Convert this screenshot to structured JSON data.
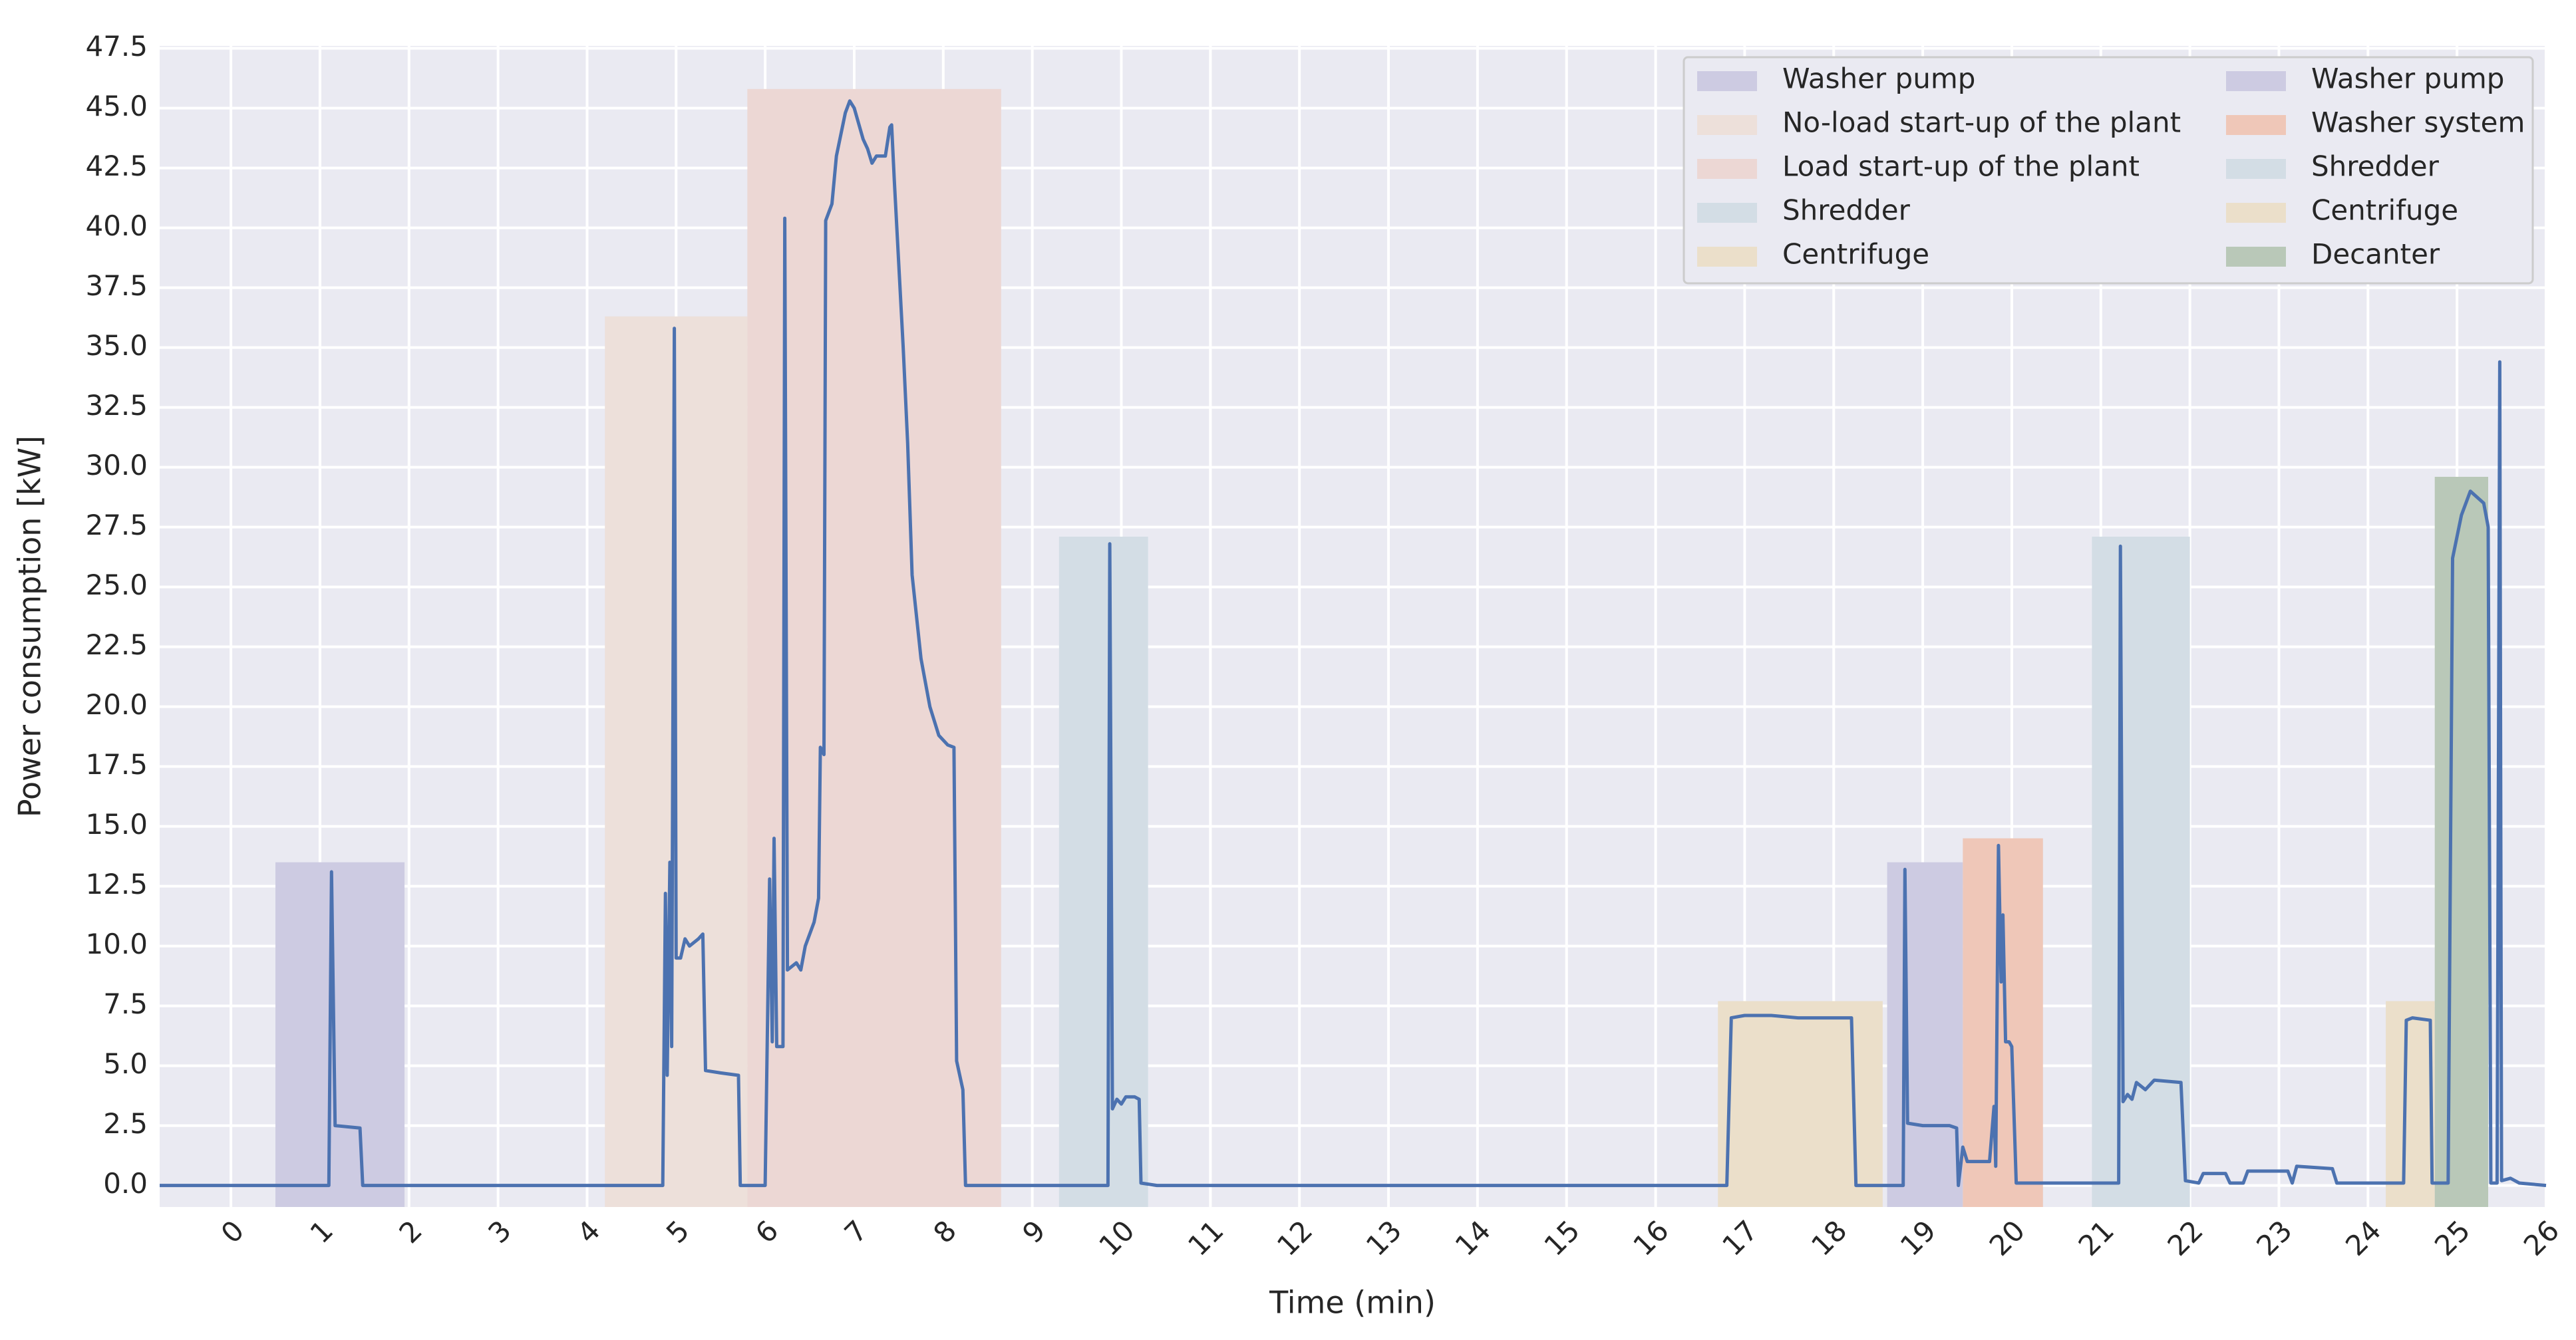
{
  "chart_data": {
    "type": "line",
    "xlabel": "Time (min)",
    "ylabel": "Power consumption [kW]",
    "color": "#4c72b0",
    "x": [
      -0.8,
      1.1,
      1.13,
      1.17,
      1.45,
      1.48,
      4.85,
      4.88,
      4.9,
      4.93,
      4.95,
      4.98,
      5.0,
      5.05,
      5.1,
      5.15,
      5.25,
      5.3,
      5.33,
      5.5,
      5.7,
      5.72,
      6.0,
      6.05,
      6.08,
      6.1,
      6.13,
      6.2,
      6.22,
      6.25,
      6.35,
      6.4,
      6.45,
      6.55,
      6.6,
      6.62,
      6.66,
      6.68,
      6.75,
      6.8,
      6.9,
      6.95,
      7.0,
      7.1,
      7.15,
      7.2,
      7.25,
      7.35,
      7.4,
      7.42,
      7.45,
      7.55,
      7.6,
      7.65,
      7.75,
      7.85,
      7.95,
      8.05,
      8.12,
      8.15,
      8.22,
      8.25,
      9.85,
      9.87,
      9.9,
      9.95,
      10.0,
      10.05,
      10.15,
      10.2,
      10.22,
      10.4,
      16.8,
      16.85,
      17.0,
      17.3,
      17.6,
      18.1,
      18.2,
      18.25,
      18.78,
      18.8,
      18.83,
      19.0,
      19.3,
      19.38,
      19.4,
      19.45,
      19.5,
      19.75,
      19.8,
      19.82,
      19.85,
      19.88,
      19.9,
      19.93,
      19.97,
      20.0,
      20.05,
      21.2,
      21.22,
      21.25,
      21.3,
      21.35,
      21.4,
      21.5,
      21.6,
      21.9,
      21.95,
      22.1,
      22.15,
      22.4,
      22.45,
      22.6,
      22.65,
      23.1,
      23.15,
      23.2,
      23.6,
      23.65,
      24.4,
      24.43,
      24.5,
      24.7,
      24.72,
      24.9,
      24.95,
      25.05,
      25.15,
      25.3,
      25.35,
      25.38,
      25.45,
      25.48,
      25.5,
      25.6,
      25.7,
      26.0
    ],
    "values": [
      0,
      0,
      13.1,
      2.5,
      2.4,
      0,
      0,
      12.2,
      4.6,
      13.5,
      5.8,
      35.8,
      9.5,
      9.5,
      10.3,
      10.0,
      10.3,
      10.5,
      4.8,
      4.7,
      4.6,
      0,
      0,
      12.8,
      6.0,
      14.5,
      5.8,
      5.8,
      40.4,
      9.0,
      9.3,
      9.0,
      10.0,
      11.0,
      12.0,
      18.3,
      18.0,
      40.3,
      41.0,
      43.0,
      44.8,
      45.3,
      45.0,
      43.7,
      43.3,
      42.7,
      43.0,
      43.0,
      44.2,
      44.3,
      42.0,
      35.0,
      31.0,
      25.5,
      22.0,
      20.0,
      18.8,
      18.4,
      18.3,
      5.2,
      4.0,
      0,
      0,
      26.8,
      3.2,
      3.6,
      3.4,
      3.7,
      3.7,
      3.6,
      0.1,
      0,
      0,
      7.0,
      7.1,
      7.1,
      7.0,
      7.0,
      7.0,
      0,
      0,
      13.2,
      2.6,
      2.5,
      2.5,
      2.4,
      0,
      1.6,
      1.0,
      1.0,
      3.3,
      0.8,
      14.2,
      8.5,
      11.3,
      6.0,
      6.0,
      5.8,
      0.1,
      0.1,
      26.7,
      3.5,
      3.8,
      3.6,
      4.3,
      4.0,
      4.4,
      4.3,
      0.2,
      0.1,
      0.5,
      0.5,
      0.1,
      0.1,
      0.6,
      0.6,
      0.1,
      0.8,
      0.7,
      0.1,
      0.1,
      6.9,
      7.0,
      6.9,
      0.1,
      0.1,
      26.2,
      28.0,
      29.0,
      28.5,
      27.5,
      0.1,
      0.1,
      34.4,
      0.2,
      0.3,
      0.1,
      0.0
    ],
    "spans": [
      {
        "name": "Washer pump",
        "color": "#cdcbe2",
        "x": [
          0.5,
          1.95
        ],
        "height": 13.5
      },
      {
        "name": "No-load start-up of the plant",
        "color": "#ede0da",
        "x": [
          4.2,
          5.8
        ],
        "height": 36.3
      },
      {
        "name": "Load start-up of the plant",
        "color": "#ecd7d4",
        "x": [
          5.8,
          8.65
        ],
        "height": 45.8
      },
      {
        "name": "Shredder",
        "color": "#d3dde5",
        "x": [
          9.3,
          10.3
        ],
        "height": 27.1
      },
      {
        "name": "Centrifuge",
        "color": "#ebdfca",
        "x": [
          16.7,
          18.55
        ],
        "height": 7.7
      },
      {
        "name": "Washer pump",
        "color": "#cdcbe2",
        "x": [
          18.6,
          19.45
        ],
        "height": 13.5
      },
      {
        "name": "Washer system",
        "color": "#efc7b8",
        "x": [
          19.45,
          20.35
        ],
        "height": 14.5
      },
      {
        "name": "Shredder",
        "color": "#d3dde5",
        "x": [
          20.9,
          22.0
        ],
        "height": 27.1
      },
      {
        "name": "Centrifuge",
        "color": "#ebdfca",
        "x": [
          24.2,
          24.75
        ],
        "height": 7.7
      },
      {
        "name": "Decanter",
        "color": "#b9c8b8",
        "x": [
          24.75,
          25.35
        ],
        "height": 29.6
      }
    ],
    "xlim": [
      -0.8,
      26
    ],
    "ylim": [
      -0.9,
      47.6
    ],
    "xticks": [
      0,
      1,
      2,
      3,
      4,
      5,
      6,
      7,
      8,
      9,
      10,
      11,
      12,
      13,
      14,
      15,
      16,
      17,
      18,
      19,
      20,
      21,
      22,
      23,
      24,
      25,
      26
    ],
    "yticks": [
      {
        "value": 0,
        "label": "0.0"
      },
      2.5,
      {
        "value": 5,
        "label": "5.0"
      },
      7.5,
      {
        "value": 10,
        "label": "10.0"
      },
      12.5,
      {
        "value": 15,
        "label": "15.0"
      },
      17.5,
      {
        "value": 20,
        "label": "20.0"
      },
      22.5,
      {
        "value": 25,
        "label": "25.0"
      },
      27.5,
      {
        "value": 30,
        "label": "30.0"
      },
      32.5,
      {
        "value": 35,
        "label": "35.0"
      },
      37.5,
      {
        "value": 40,
        "label": "40.0"
      },
      42.5,
      {
        "value": 45,
        "label": "45.0"
      },
      47.5
    ],
    "grid": true,
    "legend": "upper right",
    "legend_columns": 2
  }
}
